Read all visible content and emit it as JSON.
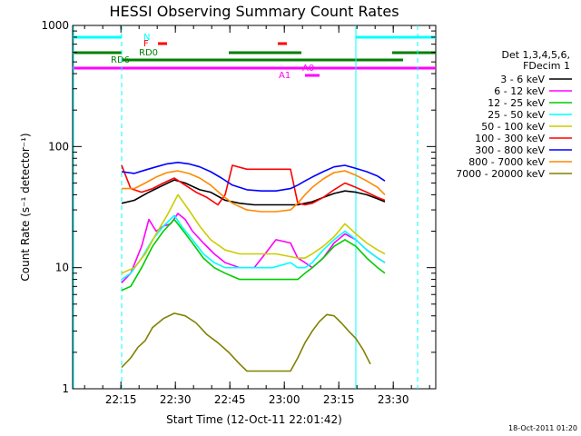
{
  "chart_data": {
    "type": "line",
    "title": "HESSI Observing Summary Count Rates",
    "xlabel": "Start Time (12-Oct-11 22:01:42)",
    "ylabel": "Count Rate (s⁻¹ detector⁻¹)",
    "yscale": "log",
    "ylim": [
      1,
      1000
    ],
    "xlim_minutes": [
      0,
      100
    ],
    "x_ticks": [
      {
        "t": 13.3,
        "label": "22:15"
      },
      {
        "t": 28.3,
        "label": "22:30"
      },
      {
        "t": 43.3,
        "label": "22:45"
      },
      {
        "t": 58.3,
        "label": "23:00"
      },
      {
        "t": 73.3,
        "label": "23:15"
      },
      {
        "t": 88.3,
        "label": "23:30"
      }
    ],
    "y_ticks": [
      {
        "v": 1,
        "label": "1"
      },
      {
        "v": 10,
        "label": "10"
      },
      {
        "v": 100,
        "label": "100"
      },
      {
        "v": 1000,
        "label": "1000"
      }
    ],
    "legend_header": [
      "Det 1,3,4,5,6,",
      "FDecim 1"
    ],
    "legend_placement": "right",
    "series": [
      {
        "name": "3 - 6 keV",
        "color": "#000000",
        "x": [
          13.5,
          17,
          21,
          25,
          28,
          31,
          35,
          38,
          42,
          46,
          50,
          56,
          62,
          64,
          66,
          69,
          72,
          75,
          78,
          81,
          84,
          86
        ],
        "y": [
          34,
          36,
          42,
          48,
          53,
          50,
          44,
          42,
          36,
          34,
          33,
          33,
          33,
          34,
          35,
          38,
          41,
          43,
          42,
          40,
          37,
          35
        ]
      },
      {
        "name": "6 - 12 keV",
        "color": "#ff00ff",
        "x": [
          13.5,
          16,
          19,
          21,
          23,
          25,
          27,
          29,
          31,
          33,
          36,
          39,
          42,
          46,
          50,
          53,
          56,
          60,
          62,
          64,
          66,
          69,
          72,
          75,
          78,
          81,
          84,
          86
        ],
        "y": [
          7.5,
          9,
          15,
          25,
          20,
          22,
          23,
          28,
          25,
          20,
          16,
          13,
          11,
          10,
          10,
          13,
          17,
          16,
          12,
          11,
          10,
          12,
          16,
          19,
          17,
          14,
          12,
          11
        ]
      },
      {
        "name": "12 - 25 keV",
        "color": "#00cc00",
        "x": [
          13.5,
          16,
          19,
          22,
          25,
          28,
          30,
          33,
          36,
          39,
          42,
          46,
          50,
          55,
          60,
          62,
          64,
          66,
          69,
          72,
          75,
          78,
          81,
          84,
          86
        ],
        "y": [
          6.5,
          7,
          10,
          15,
          20,
          25,
          21,
          16,
          12,
          10,
          9,
          8,
          8,
          8,
          8,
          8,
          9,
          10,
          12,
          15,
          17,
          15,
          12,
          10,
          9
        ]
      },
      {
        "name": "25 - 50 keV",
        "color": "#00ffff",
        "x": [
          13.5,
          16,
          19,
          22,
          25,
          28,
          30,
          33,
          36,
          39,
          42,
          46,
          50,
          55,
          60,
          62,
          64,
          66,
          69,
          72,
          75,
          78,
          81,
          84,
          86
        ],
        "y": [
          8,
          9,
          12,
          17,
          22,
          27,
          22,
          17,
          13,
          11,
          10,
          10,
          10,
          10,
          11,
          10,
          10,
          11,
          14,
          17,
          20,
          17,
          14,
          12,
          11
        ]
      },
      {
        "name": "50 - 100 keV",
        "color": "#cccc00",
        "x": [
          13.5,
          17,
          20,
          23,
          26,
          29,
          32,
          35,
          38,
          42,
          46,
          50,
          56,
          62,
          64,
          66,
          69,
          72,
          75,
          78,
          81,
          84,
          86
        ],
        "y": [
          9,
          10,
          13,
          19,
          27,
          40,
          30,
          22,
          17,
          14,
          13,
          13,
          13,
          12,
          12,
          13,
          15,
          18,
          23,
          19,
          16,
          14,
          13
        ]
      },
      {
        "name": "100 - 300 keV",
        "color": "#ff0000",
        "x": [
          13.5,
          16,
          19,
          22,
          25,
          28,
          31,
          34,
          37,
          40,
          42,
          44,
          48,
          52,
          56,
          60,
          62,
          64,
          66,
          69,
          72,
          75,
          78,
          81,
          84,
          86
        ],
        "y": [
          70,
          45,
          42,
          45,
          50,
          55,
          48,
          42,
          38,
          33,
          40,
          70,
          65,
          65,
          65,
          65,
          34,
          33,
          34,
          38,
          44,
          50,
          46,
          42,
          38,
          36
        ]
      },
      {
        "name": "300 - 800 keV",
        "color": "#0000ff",
        "x": [
          13.5,
          17,
          20,
          23,
          26,
          29,
          32,
          35,
          38,
          41,
          44,
          48,
          52,
          56,
          60,
          62,
          64,
          66,
          69,
          72,
          75,
          78,
          81,
          84,
          86
        ],
        "y": [
          62,
          60,
          64,
          68,
          72,
          74,
          72,
          68,
          62,
          55,
          48,
          44,
          43,
          43,
          45,
          48,
          52,
          56,
          62,
          68,
          70,
          66,
          62,
          57,
          52
        ]
      },
      {
        "name": "800 - 7000 keV",
        "color": "#ff8800",
        "x": [
          13.5,
          17,
          20,
          23,
          26,
          29,
          32,
          35,
          38,
          41,
          44,
          48,
          52,
          56,
          60,
          62,
          64,
          66,
          69,
          72,
          75,
          78,
          81,
          84,
          86
        ],
        "y": [
          45,
          45,
          50,
          56,
          61,
          63,
          60,
          55,
          48,
          40,
          34,
          30,
          29,
          29,
          30,
          34,
          40,
          46,
          54,
          61,
          63,
          58,
          52,
          46,
          40
        ]
      },
      {
        "name": "7000 - 20000 keV",
        "color": "#808000",
        "x": [
          13.5,
          16,
          18,
          20,
          22,
          25,
          28,
          31,
          34,
          37,
          40,
          43,
          46,
          48,
          60,
          62,
          64,
          66,
          68,
          70,
          72,
          74,
          76,
          78,
          80,
          82
        ],
        "y": [
          1.5,
          1.8,
          2.2,
          2.5,
          3.2,
          3.8,
          4.2,
          4,
          3.5,
          2.8,
          2.4,
          2,
          1.6,
          1.4,
          1.4,
          1.8,
          2.4,
          3,
          3.6,
          4.1,
          4,
          3.5,
          3,
          2.6,
          2.1,
          1.6
        ]
      }
    ],
    "attenuator_labels": [
      "A0",
      "A1"
    ],
    "flag_labels": [
      "N",
      "F",
      "RD0",
      "RD6"
    ],
    "timestamp": "18-Oct-2011 01:20"
  },
  "colors": {
    "night": "#00ffff",
    "flare": "#ff0000",
    "rd": "#008000",
    "attenuator": "#ff00ff"
  },
  "flag_intervals": {
    "N": [
      [
        0,
        13.5
      ],
      [
        78,
        100
      ]
    ],
    "F": [
      [
        23.5,
        26
      ],
      [
        56.5,
        59
      ]
    ],
    "RD0": [
      [
        0,
        13.5
      ],
      [
        43,
        63
      ],
      [
        88,
        100
      ]
    ],
    "RD6": [
      [
        13.5,
        91
      ]
    ],
    "A0": [
      [
        0,
        100
      ]
    ],
    "A1": [
      [
        64,
        68
      ]
    ]
  },
  "vlines": {
    "solid": [
      0,
      78
    ],
    "dashed": [
      13.5,
      95
    ]
  }
}
